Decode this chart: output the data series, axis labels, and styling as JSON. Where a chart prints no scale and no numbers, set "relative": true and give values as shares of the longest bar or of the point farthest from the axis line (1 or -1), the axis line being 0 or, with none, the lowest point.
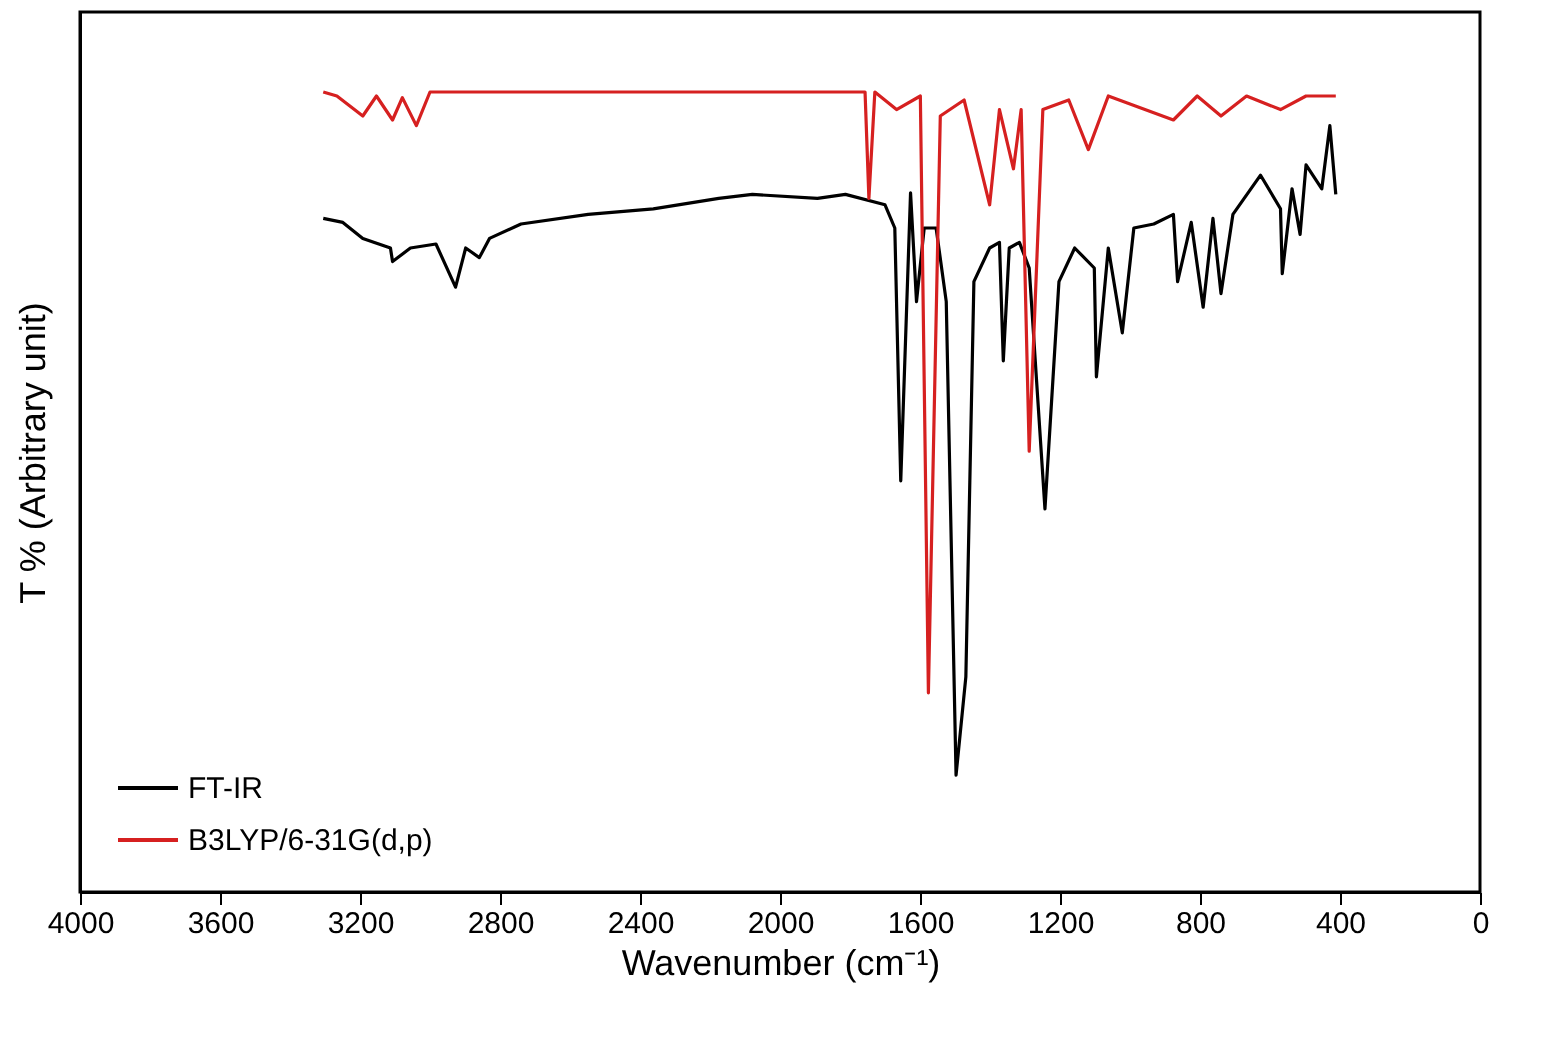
{
  "chart_data": {
    "type": "line",
    "relative": true,
    "xlabel": "Wavenumber (cm⁻¹)",
    "ylabel": "T % (Arbitrary unit)",
    "xlim": [
      4000,
      0
    ],
    "xticks": [
      4000,
      3600,
      3200,
      2800,
      2400,
      2000,
      1600,
      1200,
      800,
      400,
      0
    ],
    "grid": false,
    "legend": "bottom left",
    "tick_labels": "x",
    "line_style": "solid",
    "marker": "none",
    "series": [
      {
        "name": "FT-IR",
        "color": "#000000",
        "x": [
          3305,
          3249,
          3192,
          3113,
          3107,
          3056,
          2983,
          2927,
          2898,
          2859,
          2830,
          2740,
          2548,
          2362,
          2175,
          2079,
          1893,
          1813,
          1700,
          1672,
          1655,
          1627,
          1610,
          1588,
          1554,
          1525,
          1497,
          1469,
          1446,
          1401,
          1373,
          1362,
          1345,
          1316,
          1288,
          1243,
          1203,
          1158,
          1102,
          1096,
          1062,
          1022,
          989,
          932,
          876,
          864,
          825,
          791,
          763,
          740,
          706,
          627,
          570,
          565,
          537,
          514,
          497,
          452,
          429,
          412
        ],
        "values": [
          0.842,
          0.837,
          0.817,
          0.805,
          0.788,
          0.805,
          0.81,
          0.756,
          0.805,
          0.793,
          0.817,
          0.835,
          0.847,
          0.854,
          0.867,
          0.872,
          0.867,
          0.872,
          0.859,
          0.83,
          0.514,
          0.874,
          0.738,
          0.83,
          0.83,
          0.738,
          0.146,
          0.269,
          0.763,
          0.805,
          0.812,
          0.664,
          0.805,
          0.812,
          0.78,
          0.479,
          0.763,
          0.805,
          0.78,
          0.644,
          0.805,
          0.699,
          0.83,
          0.835,
          0.847,
          0.763,
          0.837,
          0.731,
          0.842,
          0.748,
          0.847,
          0.896,
          0.854,
          0.773,
          0.879,
          0.822,
          0.909,
          0.879,
          0.958,
          0.872
        ]
      },
      {
        "name": "B3LYP/6-31G(d,p)",
        "color": "#d62020",
        "x": [
          3305,
          3266,
          3192,
          3153,
          3107,
          3079,
          3039,
          3000,
          1757,
          1746,
          1729,
          1667,
          1599,
          1576,
          1542,
          1474,
          1401,
          1373,
          1333,
          1311,
          1288,
          1249,
          1175,
          1119,
          1062,
          876,
          808,
          740,
          667,
          570,
          497,
          412
        ],
        "values": [
          1,
          0.995,
          0.97,
          0.995,
          0.965,
          0.993,
          0.958,
          1,
          1,
          0.867,
          1,
          0.978,
          0.995,
          0.249,
          0.97,
          0.99,
          0.859,
          0.978,
          0.904,
          0.978,
          0.551,
          0.978,
          0.99,
          0.928,
          0.995,
          0.965,
          0.995,
          0.97,
          0.995,
          0.978,
          0.995,
          0.995
        ]
      }
    ]
  }
}
